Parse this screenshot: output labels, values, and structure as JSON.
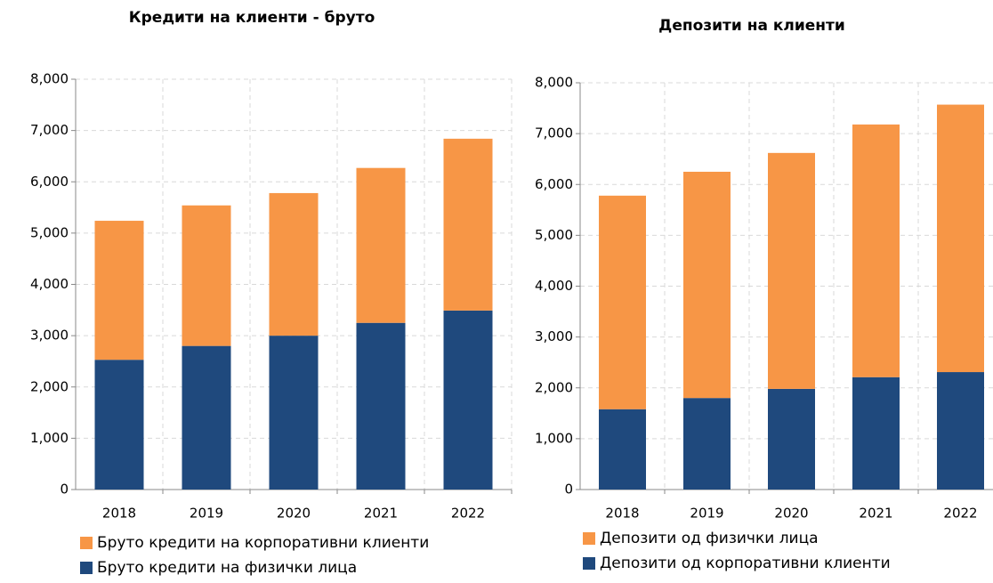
{
  "chart_data": [
    {
      "type": "stacked_bar",
      "title": "Кредити на клиенти - бруто",
      "categories": [
        "2018",
        "2019",
        "2020",
        "2021",
        "2022"
      ],
      "series": [
        {
          "name": "Бруто кредити на физички лица",
          "color": "#1f497d",
          "values": [
            2530,
            2800,
            3000,
            3250,
            3490
          ]
        },
        {
          "name": "Бруто кредити на корпоративни клиенти",
          "color": "#f79646",
          "values": [
            2710,
            2740,
            2780,
            3020,
            3350
          ]
        }
      ],
      "ylim": [
        0,
        8000
      ],
      "yticks": [
        0,
        {
          "value": 1000,
          "label": "1,000"
        },
        {
          "value": 2000,
          "label": "2,000"
        },
        {
          "value": 3000,
          "label": "3,000"
        },
        {
          "value": 4000,
          "label": "4,000"
        },
        {
          "value": 5000,
          "label": "5,000"
        },
        {
          "value": 6000,
          "label": "6,000"
        },
        {
          "value": 7000,
          "label": "7,000"
        },
        {
          "value": 8000,
          "label": "8,000"
        }
      ],
      "grid": true
    },
    {
      "type": "stacked_bar",
      "title": "Депозити на клиенти",
      "categories": [
        "2018",
        "2019",
        "2020",
        "2021",
        "2022"
      ],
      "series": [
        {
          "name": "Депозити од корпоративни клиенти",
          "color": "#1f497d",
          "values": [
            1580,
            1800,
            1980,
            2210,
            2310
          ]
        },
        {
          "name": "Депозити од физички лица",
          "color": "#f79646",
          "values": [
            4200,
            4450,
            4640,
            4970,
            5260
          ]
        }
      ],
      "ylim": [
        0,
        8000
      ],
      "yticks": [
        0,
        {
          "value": 1000,
          "label": "1,000"
        },
        {
          "value": 2000,
          "label": "2,000"
        },
        {
          "value": 3000,
          "label": "3,000"
        },
        {
          "value": 4000,
          "label": "4,000"
        },
        {
          "value": 5000,
          "label": "5,000"
        },
        {
          "value": 6000,
          "label": "6,000"
        },
        {
          "value": 7000,
          "label": "7,000"
        },
        {
          "value": 8000,
          "label": "8,000"
        }
      ],
      "grid": true
    }
  ]
}
